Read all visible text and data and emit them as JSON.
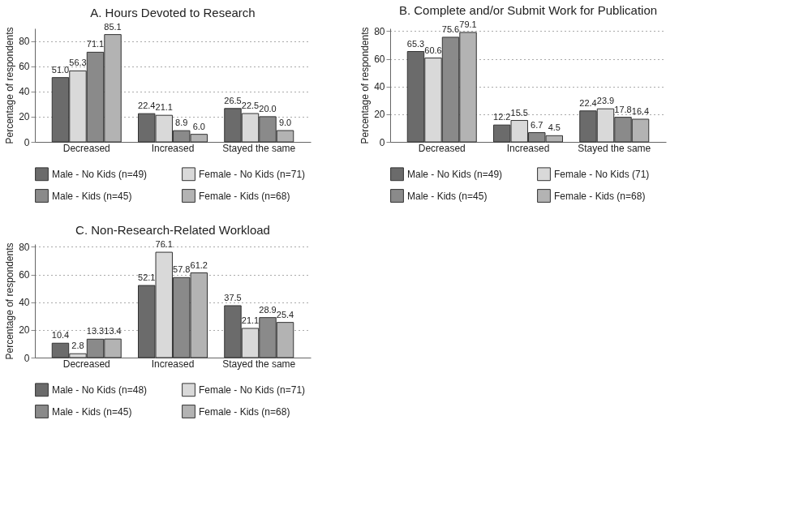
{
  "chart_data": [
    {
      "type": "bar",
      "title": "A. Hours Devoted to Research",
      "ylabel": "Percentage of respondents",
      "categories": [
        "Decreased",
        "Increased",
        "Stayed the same"
      ],
      "ylim": [
        0,
        90
      ],
      "yticks": [
        0,
        20,
        40,
        60,
        80
      ],
      "grid": "y",
      "legend": "bottom",
      "data_labels": true,
      "series": [
        {
          "name": "Male - No Kids (n=49)",
          "color": "#6b6b6b",
          "values": [
            51.0,
            22.4,
            26.5
          ],
          "value_labels": [
            "51.0",
            "22.4",
            "26.5"
          ]
        },
        {
          "name": "Female - No Kids (n=71)",
          "color": "#d9d9d9",
          "values": [
            56.3,
            21.1,
            22.5
          ],
          "value_labels": [
            "56.3",
            "21.1",
            "22.5"
          ]
        },
        {
          "name": "Male - Kids (n=45)",
          "color": "#8a8a8a",
          "values": [
            71.1,
            8.9,
            20.0
          ],
          "value_labels": [
            "71.1",
            "8.9",
            "20.0"
          ]
        },
        {
          "name": "Female - Kids  (n=68)",
          "color": "#b3b3b3",
          "values": [
            85.1,
            6.0,
            9.0
          ],
          "value_labels": [
            "85.1",
            "6.0",
            "9.0"
          ]
        }
      ]
    },
    {
      "type": "bar",
      "title": "B. Complete and/or Submit Work for Publication",
      "ylabel": "Percentage of respondents",
      "categories": [
        "Decreased",
        "Increased",
        "Stayed the same"
      ],
      "ylim": [
        0,
        82
      ],
      "yticks": [
        0,
        20,
        40,
        60,
        80
      ],
      "grid": "y",
      "legend": "bottom",
      "data_labels": true,
      "series": [
        {
          "name": "Male - No Kids (n=49)",
          "color": "#6b6b6b",
          "values": [
            65.3,
            12.2,
            22.4
          ]
        },
        {
          "name": "Female - No Kids (71)",
          "color": "#d9d9d9",
          "values": [
            60.6,
            15.5,
            23.9
          ]
        },
        {
          "name": "Male - Kids (n=45)",
          "color": "#8a8a8a",
          "values": [
            75.6,
            6.7,
            17.8
          ]
        },
        {
          "name": "Female - Kids (n=68)",
          "color": "#b3b3b3",
          "values": [
            79.1,
            4.5,
            16.4
          ]
        }
      ]
    },
    {
      "type": "bar",
      "title": "C. Non-Research-Related Workload",
      "ylabel": "Percentage of respondents",
      "categories": [
        "Decreased",
        "Increased",
        "Stayed the same"
      ],
      "ylim": [
        0,
        82
      ],
      "yticks": [
        0,
        20,
        40,
        60,
        80
      ],
      "grid": "y",
      "legend": "bottom",
      "data_labels": true,
      "series": [
        {
          "name": "Male - No Kids (n=48)",
          "color": "#6b6b6b",
          "values": [
            10.4,
            52.1,
            37.5
          ]
        },
        {
          "name": "Female - No Kids (n=71)",
          "color": "#d9d9d9",
          "values": [
            2.8,
            76.1,
            21.1
          ]
        },
        {
          "name": "Male - Kids (n=45)",
          "color": "#8a8a8a",
          "values": [
            13.3,
            57.8,
            28.9
          ]
        },
        {
          "name": "Female - Kids (n=68)",
          "color": "#b3b3b3",
          "values": [
            13.4,
            61.2,
            25.4
          ]
        }
      ]
    }
  ]
}
